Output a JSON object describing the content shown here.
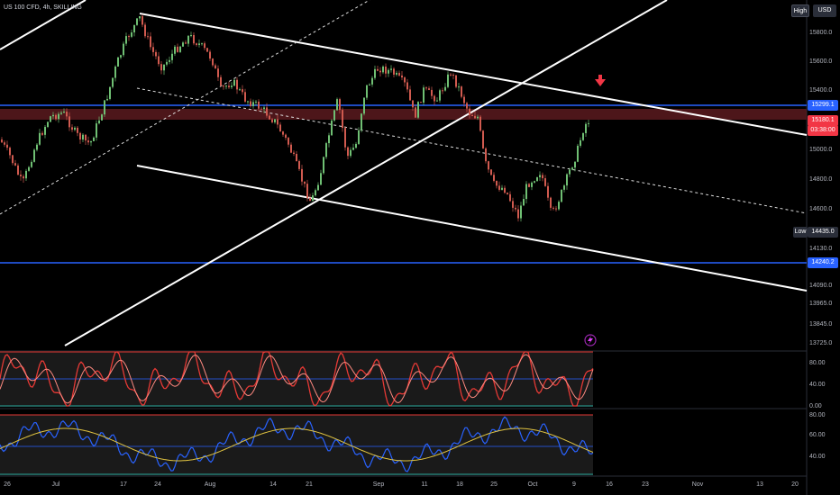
{
  "header": {
    "title": "US 100 CFD, 4h, SKILLING"
  },
  "toolbar": {
    "high_label": "High",
    "currency_label": "USD"
  },
  "price_axis": {
    "ticks": [
      "15800.0",
      "15600.0",
      "15400.0",
      "15000.0",
      "14800.0",
      "14600.0",
      "14130.0",
      "14090.0",
      "13965.0",
      "13845.0",
      "13725.0"
    ],
    "price_labels": [
      {
        "text": "15299.1",
        "style": "blue"
      },
      {
        "text": "15180.1",
        "style": "red"
      },
      {
        "text": "03:38:00",
        "style": "red"
      },
      {
        "text": "14435.0",
        "style": "gray"
      },
      {
        "text": "14240.2",
        "style": "blue"
      }
    ],
    "low_tag": "Low"
  },
  "stoch_axis": {
    "ticks": [
      "80.00",
      "40.00",
      "0.00"
    ]
  },
  "rsi_axis": {
    "ticks": [
      "80.00",
      "60.00",
      "40.00"
    ]
  },
  "time_axis": {
    "ticks": [
      "26",
      "Jul",
      "17",
      "24",
      "Aug",
      "14",
      "21",
      "Sep",
      "11",
      "18",
      "25",
      "Oct",
      "9",
      "16",
      "23",
      "Nov",
      "13",
      "20"
    ]
  },
  "colors": {
    "bull": "#26a69a",
    "bear": "#ef5350",
    "candle_up": "#6fbf73",
    "candle_down": "#d05a4f",
    "level": "#2962ff",
    "trendline": "#ffffff",
    "stoch_k": "#e53935",
    "stoch_d": "#ff8a80",
    "rsi": "#2962ff",
    "rsi_ma": "#e0c341",
    "zone": "#7a1f25"
  },
  "alert_icon": "lightning-icon",
  "sell_arrow_icon": "down-arrow-icon"
}
